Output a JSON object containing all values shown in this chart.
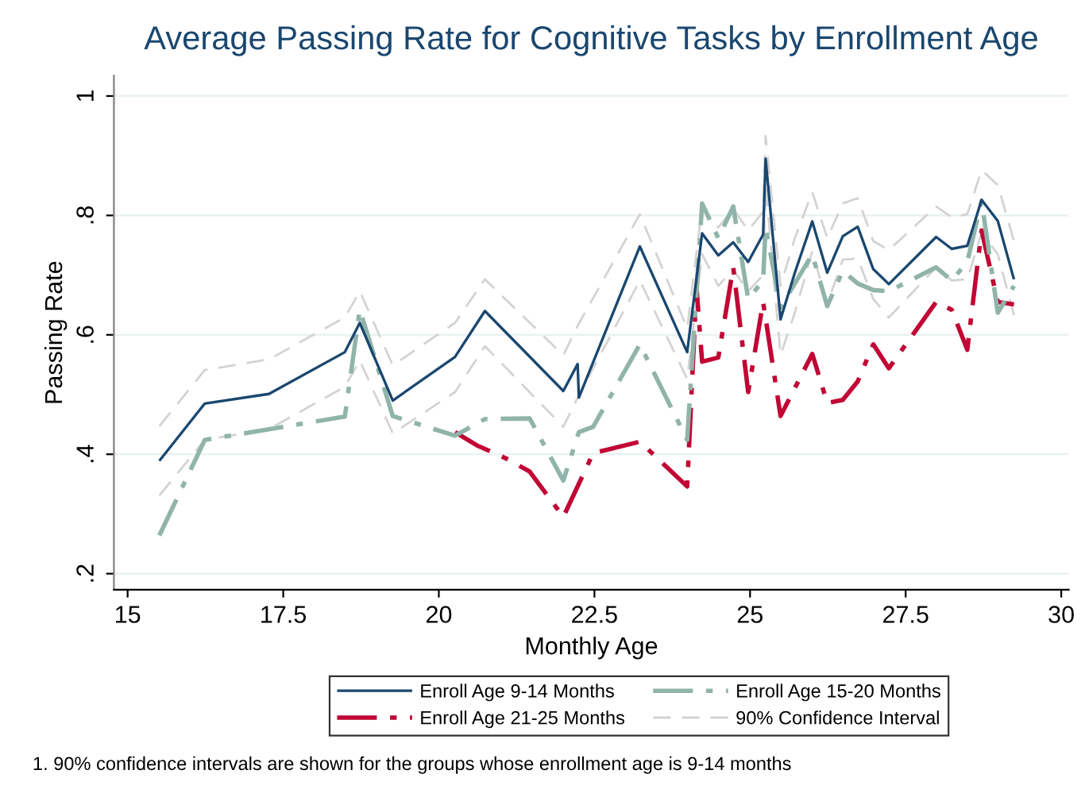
{
  "chart_data": {
    "type": "line",
    "title": "Average Passing Rate for Cognitive Tasks by Enrollment Age",
    "xlabel": "Monthly Age",
    "ylabel": "Passing Rate",
    "xlim": [
      14.78,
      30.12
    ],
    "xticks": [
      15,
      17.5,
      20,
      22.5,
      25,
      27.5,
      30
    ],
    "ylim": [
      0.173,
      1.034
    ],
    "yticks": [
      {
        "value": 0.2,
        "label": ".2"
      },
      {
        "value": 0.4,
        "label": ".4"
      },
      {
        "value": 0.6,
        "label": ".6"
      },
      {
        "value": 0.8,
        "label": ".8"
      },
      1
    ],
    "grid": "y",
    "legend": "bottom",
    "tick_labels": "xy",
    "annotations": [
      "1. 90% confidence intervals are shown for the groups whose enrollment age is 9-14 months"
    ],
    "series": [
      {
        "name": "Enroll Age 9-14 Months",
        "color": "#1a476f",
        "line_style": "solid",
        "x": [
          15.51,
          16.24,
          17.27,
          18.49,
          18.73,
          19.26,
          20.26,
          20.74,
          22.0,
          22.23,
          22.25,
          23.23,
          23.99,
          24.23,
          24.49,
          24.73,
          24.97,
          25.21,
          25.25,
          25.49,
          25.72,
          26.0,
          26.24,
          26.49,
          26.73,
          26.98,
          27.23,
          27.99,
          28.24,
          28.49,
          28.72,
          28.98,
          29.24
        ],
        "values": [
          0.389,
          0.485,
          0.501,
          0.571,
          0.62,
          0.49,
          0.563,
          0.64,
          0.506,
          0.551,
          0.495,
          0.748,
          0.571,
          0.77,
          0.733,
          0.755,
          0.722,
          0.768,
          0.895,
          0.626,
          0.704,
          0.79,
          0.704,
          0.765,
          0.781,
          0.71,
          0.685,
          0.764,
          0.744,
          0.749,
          0.826,
          0.791,
          0.693
        ]
      },
      {
        "name": "Enroll Age 15-20 Months",
        "color": "#90b4aa",
        "line_style": "dashdot",
        "x": [
          15.51,
          16.24,
          17.27,
          18.49,
          18.73,
          19.26,
          20.26,
          20.74,
          21.46,
          22.0,
          22.25,
          22.48,
          23.23,
          23.99,
          24.23,
          24.49,
          24.73,
          24.97,
          25.21,
          25.25,
          25.49,
          26.0,
          26.24,
          26.49,
          26.73,
          26.98,
          27.23,
          27.99,
          28.24,
          28.49,
          28.72,
          28.98,
          29.24
        ],
        "values": [
          0.264,
          0.424,
          0.442,
          0.463,
          0.642,
          0.464,
          0.431,
          0.459,
          0.46,
          0.356,
          0.437,
          0.446,
          0.584,
          0.424,
          0.82,
          0.762,
          0.815,
          0.66,
          0.691,
          0.78,
          0.646,
          0.735,
          0.648,
          0.707,
          0.686,
          0.675,
          0.673,
          0.713,
          0.691,
          0.722,
          0.824,
          0.637,
          0.682
        ]
      },
      {
        "name": "Enroll Age 21-25 Months",
        "color": "#c10534",
        "line_style": "dashdot",
        "x": [
          20.26,
          20.61,
          21.08,
          21.46,
          22.0,
          22.48,
          23.23,
          23.99,
          24.14,
          24.23,
          24.49,
          24.73,
          24.97,
          25.21,
          25.49,
          26.0,
          26.24,
          26.49,
          26.73,
          26.98,
          27.23,
          27.99,
          28.24,
          28.49,
          28.72,
          28.98,
          29.24
        ],
        "values": [
          0.437,
          0.415,
          0.393,
          0.371,
          0.295,
          0.402,
          0.421,
          0.346,
          0.68,
          0.555,
          0.562,
          0.713,
          0.504,
          0.655,
          0.464,
          0.568,
          0.486,
          0.491,
          0.522,
          0.584,
          0.544,
          0.655,
          0.642,
          0.575,
          0.775,
          0.655,
          0.651
        ]
      },
      {
        "name": "90% Confidence Interval",
        "color": "#d3d3d3",
        "line_style": "dashed",
        "x": [
          15.51,
          16.24,
          17.27,
          18.49,
          18.73,
          19.26,
          20.26,
          20.74,
          22.0,
          22.23,
          23.23,
          23.99,
          24.23,
          24.49,
          24.73,
          24.97,
          25.21,
          25.25,
          25.49,
          25.72,
          26.0,
          26.24,
          26.49,
          26.73,
          26.98,
          27.23,
          27.99,
          28.24,
          28.49,
          28.72,
          28.98,
          29.24
        ],
        "values": [
          0.447,
          0.541,
          0.559,
          0.629,
          0.673,
          0.549,
          0.62,
          0.693,
          0.566,
          0.615,
          0.802,
          0.611,
          0.815,
          0.78,
          0.811,
          0.775,
          0.806,
          0.933,
          0.682,
          0.762,
          0.839,
          0.762,
          0.82,
          0.829,
          0.757,
          0.742,
          0.815,
          0.797,
          0.802,
          0.876,
          0.851,
          0.757
        ]
      },
      {
        "color": "#d3d3d3",
        "line_style": "dashed",
        "x": [
          15.51,
          16.24,
          17.27,
          18.49,
          18.73,
          19.26,
          20.26,
          20.74,
          22.0,
          22.23,
          23.23,
          23.99,
          24.23,
          24.49,
          24.73,
          24.97,
          25.21,
          25.25,
          25.49,
          25.72,
          26.0,
          26.24,
          26.49,
          26.73,
          26.98,
          27.23,
          27.99,
          28.24,
          28.49,
          28.72,
          28.98,
          29.24
        ],
        "values": [
          0.331,
          0.424,
          0.442,
          0.513,
          0.557,
          0.435,
          0.504,
          0.581,
          0.446,
          0.495,
          0.691,
          0.526,
          0.735,
          0.682,
          0.709,
          0.673,
          0.7,
          0.851,
          0.566,
          0.637,
          0.74,
          0.651,
          0.726,
          0.728,
          0.66,
          0.629,
          0.713,
          0.691,
          0.693,
          0.771,
          0.735,
          0.633
        ]
      }
    ]
  }
}
